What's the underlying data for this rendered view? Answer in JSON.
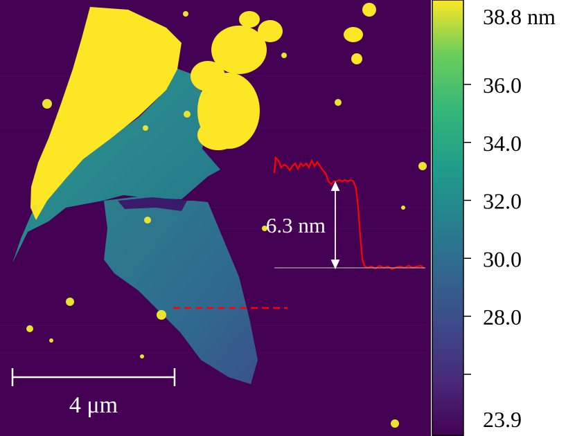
{
  "image": {
    "colormap": "viridis",
    "colors": {
      "background": "#440154",
      "flake_high": "#fde725",
      "flake_mid": "#21918c",
      "flake_low": "#31688e",
      "profile_line": "#ff0000",
      "annotation": "#ffffff"
    }
  },
  "colorbar": {
    "max_label": "38.8 nm",
    "min_label": "23.9",
    "ticks": [
      {
        "value": 36.0,
        "label": "36.0"
      },
      {
        "value": 34.0,
        "label": "34.0"
      },
      {
        "value": 32.0,
        "label": "32.0"
      },
      {
        "value": 30.0,
        "label": "30.0"
      },
      {
        "value": 28.0,
        "label": "28.0"
      },
      {
        "value": 26.0,
        "label": ""
      }
    ],
    "range": [
      23.9,
      38.8
    ]
  },
  "annotations": {
    "scalebar_label": "4 μm",
    "step_height_label": "6.3 nm"
  }
}
